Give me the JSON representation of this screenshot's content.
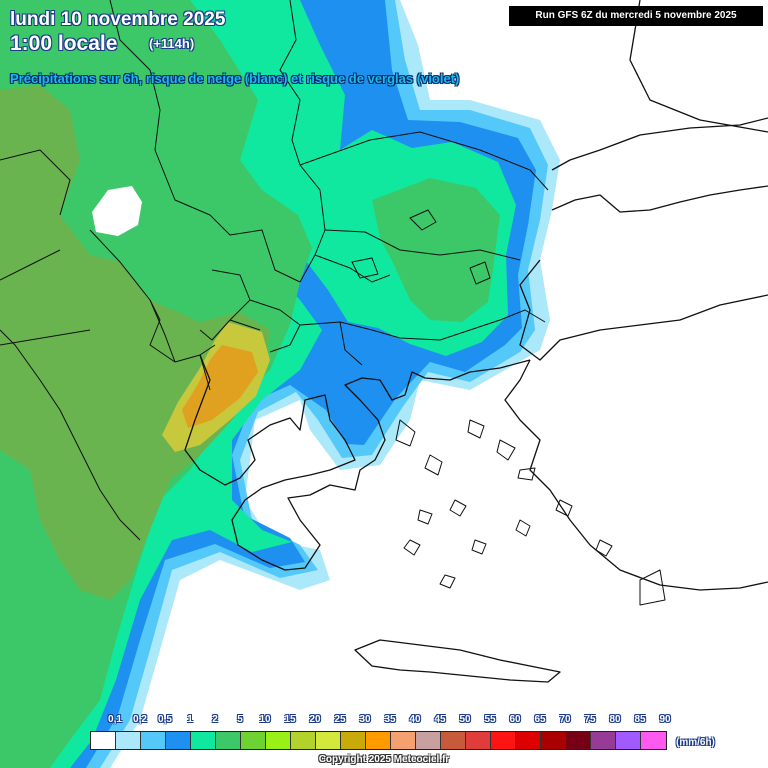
{
  "header": {
    "date_line": "lundi 10 novembre 2025",
    "time_line": "1:00 locale",
    "lead_time": "(+114h)",
    "subtitle": "Précipitations sur 6h, risque de neige (blanc) et risque de verglas (violet)"
  },
  "run_info": "Run GFS 6Z du mercredi 5 novembre 2025",
  "legend": {
    "unit": "(mm/6h)",
    "labels": [
      "0,1",
      "0,2",
      "0,5",
      "1",
      "2",
      "5",
      "10",
      "15",
      "20",
      "25",
      "30",
      "35",
      "40",
      "45",
      "50",
      "55",
      "60",
      "65",
      "70",
      "75",
      "80",
      "85",
      "90"
    ],
    "colors": [
      "#ffffff",
      "#aae8fa",
      "#55c8fa",
      "#1e90f0",
      "#10e8a0",
      "#3cc868",
      "#6ed232",
      "#98f018",
      "#b4d22c",
      "#d2e83c",
      "#c8aa0a",
      "#ff9a00",
      "#f5a070",
      "#c8a0a0",
      "#c85a3c",
      "#e03c3c",
      "#ff1414",
      "#dc0000",
      "#aa0000",
      "#780014",
      "#963c96",
      "#a05aff",
      "#ff5af0"
    ]
  },
  "copyright": "Copyright 2025 Meteociel.fr",
  "colors": {
    "background": "#ffffff",
    "precip_light_blue": "#aae8fa",
    "precip_blue": "#55c8fa",
    "precip_dark_blue": "#1e90f0",
    "precip_cyan_green": "#10e8a0",
    "precip_green": "#3cc868",
    "precip_olive": "#6ab450",
    "precip_yellow_green": "#c8c83c",
    "precip_orange": "#e0a020"
  }
}
